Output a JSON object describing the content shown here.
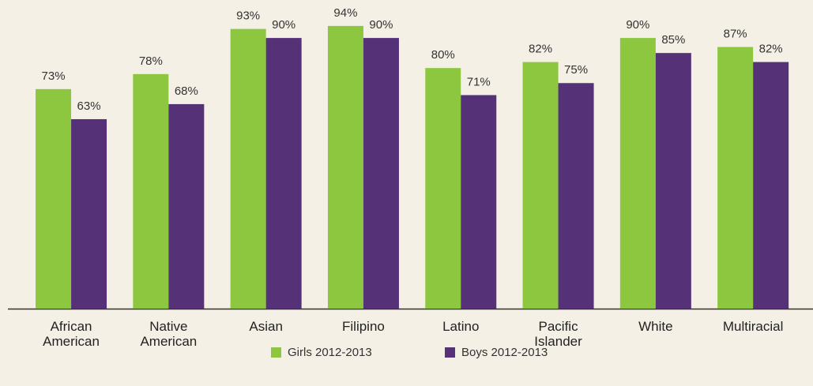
{
  "chart_data": {
    "type": "bar",
    "categories": [
      "African American",
      "Native American",
      "Asian",
      "Filipino",
      "Latino",
      "Pacific Islander",
      "White",
      "Multiracial"
    ],
    "series": [
      {
        "name": "Girls 2012-2013",
        "color": "#8dc63f",
        "values": [
          73,
          78,
          93,
          94,
          80,
          82,
          90,
          87
        ],
        "value_labels": [
          "73%",
          "78%",
          "93%",
          "94%",
          "80%",
          "82%",
          "90%",
          "87%"
        ]
      },
      {
        "name": "Boys 2012-2013",
        "color": "#553278",
        "values": [
          63,
          68,
          90,
          90,
          71,
          75,
          85,
          82
        ],
        "value_labels": [
          "63%",
          "68%",
          "90%",
          "90%",
          "71%",
          "75%",
          "85%",
          "82%"
        ]
      }
    ],
    "ylim": [
      0,
      100
    ]
  }
}
